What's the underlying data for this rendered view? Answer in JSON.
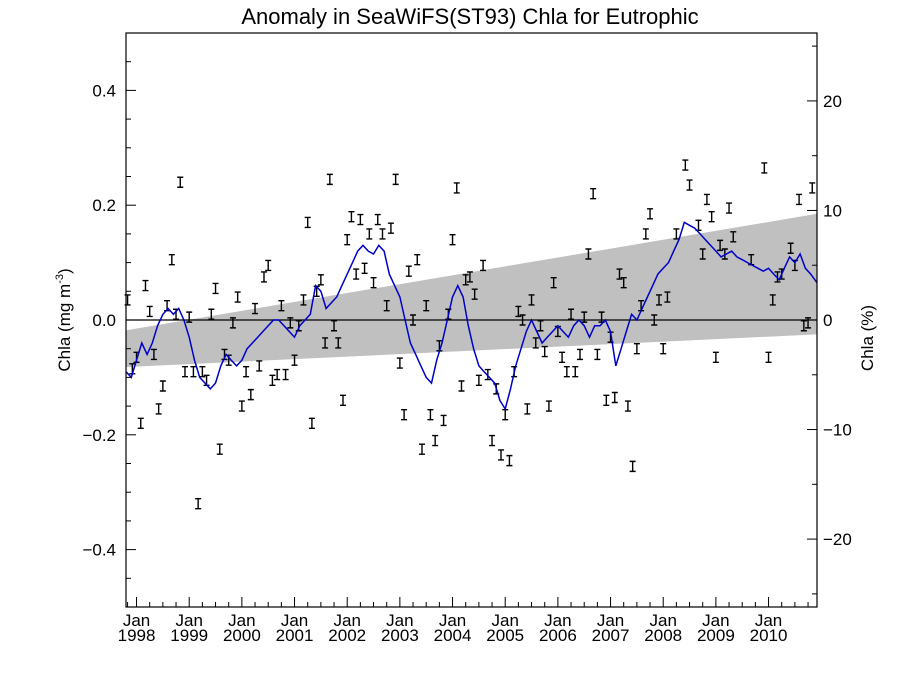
{
  "chart_data": {
    "type": "scatter",
    "title": "Anomaly in SeaWiFS(ST93) Chla for Eutrophic",
    "ylabel": "Chla (mg m",
    "ylabel_sup": "-3",
    "ylabel_tail": ")",
    "ylabel_right": "Chla (%)",
    "xlim": [
      1997.8,
      2010.92
    ],
    "ylim": [
      -0.5,
      0.5
    ],
    "ylim_right": [
      -26.2,
      26.2
    ],
    "xticks": [
      {
        "value": 1998,
        "month": "Jan",
        "year": "1998"
      },
      {
        "value": 1999,
        "month": "Jan",
        "year": "1999"
      },
      {
        "value": 2000,
        "month": "Jan",
        "year": "2000"
      },
      {
        "value": 2001,
        "month": "Jan",
        "year": "2001"
      },
      {
        "value": 2002,
        "month": "Jan",
        "year": "2002"
      },
      {
        "value": 2003,
        "month": "Jan",
        "year": "2003"
      },
      {
        "value": 2004,
        "month": "Jan",
        "year": "2004"
      },
      {
        "value": 2005,
        "month": "Jan",
        "year": "2005"
      },
      {
        "value": 2006,
        "month": "Jan",
        "year": "2006"
      },
      {
        "value": 2007,
        "month": "Jan",
        "year": "2007"
      },
      {
        "value": 2008,
        "month": "Jan",
        "year": "2008"
      },
      {
        "value": 2009,
        "month": "Jan",
        "year": "2009"
      },
      {
        "value": 2010,
        "month": "Jan",
        "year": "2010"
      }
    ],
    "yticks_left": [
      {
        "value": 0.4,
        "label": "0.4"
      },
      {
        "value": 0.2,
        "label": "0.2"
      },
      {
        "value": 0.0,
        "label": "0.0"
      },
      {
        "value": -0.2,
        "label": "−0.2"
      },
      {
        "value": -0.4,
        "label": "−0.4"
      }
    ],
    "yticks_right": [
      {
        "value": 20,
        "label": "20"
      },
      {
        "value": 10,
        "label": "10"
      },
      {
        "value": 0,
        "label": "0"
      },
      {
        "value": -10,
        "label": "−10"
      },
      {
        "value": -20,
        "label": "−20"
      }
    ],
    "trend_band": {
      "x_start": 1997.8,
      "x_end": 2010.92,
      "upper": [
        -0.018,
        0.185
      ],
      "lower": [
        -0.082,
        -0.025
      ]
    },
    "zero_line": 0.0,
    "colors": {
      "line": "#0000cc",
      "band": "#c0c0c0",
      "points": "#000000"
    },
    "monthly_anomaly": [
      {
        "x": 1997.83,
        "y": 0.035
      },
      {
        "x": 1997.92,
        "y": -0.085
      },
      {
        "x": 1998.0,
        "y": -0.065
      },
      {
        "x": 1998.08,
        "y": -0.18
      },
      {
        "x": 1998.17,
        "y": 0.06
      },
      {
        "x": 1998.25,
        "y": 0.015
      },
      {
        "x": 1998.33,
        "y": -0.06
      },
      {
        "x": 1998.42,
        "y": -0.155
      },
      {
        "x": 1998.5,
        "y": -0.115
      },
      {
        "x": 1998.58,
        "y": 0.025
      },
      {
        "x": 1998.67,
        "y": 0.105
      },
      {
        "x": 1998.75,
        "y": 0.01
      },
      {
        "x": 1998.83,
        "y": 0.24
      },
      {
        "x": 1998.92,
        "y": -0.09
      },
      {
        "x": 1999.0,
        "y": 0.005
      },
      {
        "x": 1999.08,
        "y": -0.09
      },
      {
        "x": 1999.17,
        "y": -0.32
      },
      {
        "x": 1999.25,
        "y": -0.09
      },
      {
        "x": 1999.33,
        "y": -0.105
      },
      {
        "x": 1999.42,
        "y": 0.01
      },
      {
        "x": 1999.5,
        "y": 0.055
      },
      {
        "x": 1999.58,
        "y": -0.225
      },
      {
        "x": 1999.67,
        "y": -0.06
      },
      {
        "x": 1999.75,
        "y": -0.07
      },
      {
        "x": 1999.83,
        "y": -0.005
      },
      {
        "x": 1999.92,
        "y": 0.04
      },
      {
        "x": 2000.0,
        "y": -0.15
      },
      {
        "x": 2000.08,
        "y": -0.09
      },
      {
        "x": 2000.17,
        "y": -0.13
      },
      {
        "x": 2000.25,
        "y": 0.02
      },
      {
        "x": 2000.33,
        "y": -0.08
      },
      {
        "x": 2000.42,
        "y": 0.075
      },
      {
        "x": 2000.5,
        "y": 0.095
      },
      {
        "x": 2000.58,
        "y": -0.105
      },
      {
        "x": 2000.67,
        "y": -0.095
      },
      {
        "x": 2000.75,
        "y": 0.025
      },
      {
        "x": 2000.83,
        "y": -0.095
      },
      {
        "x": 2000.92,
        "y": -0.005
      },
      {
        "x": 2001.0,
        "y": -0.07
      },
      {
        "x": 2001.08,
        "y": -0.01
      },
      {
        "x": 2001.17,
        "y": 0.035
      },
      {
        "x": 2001.25,
        "y": 0.17
      },
      {
        "x": 2001.33,
        "y": -0.18
      },
      {
        "x": 2001.42,
        "y": 0.05
      },
      {
        "x": 2001.5,
        "y": 0.07
      },
      {
        "x": 2001.58,
        "y": -0.04
      },
      {
        "x": 2001.67,
        "y": 0.245
      },
      {
        "x": 2001.75,
        "y": -0.01
      },
      {
        "x": 2001.83,
        "y": -0.04
      },
      {
        "x": 2001.92,
        "y": -0.14
      },
      {
        "x": 2002.0,
        "y": 0.14
      },
      {
        "x": 2002.08,
        "y": 0.18
      },
      {
        "x": 2002.17,
        "y": 0.08
      },
      {
        "x": 2002.25,
        "y": 0.175
      },
      {
        "x": 2002.33,
        "y": 0.09
      },
      {
        "x": 2002.42,
        "y": 0.15
      },
      {
        "x": 2002.5,
        "y": 0.065
      },
      {
        "x": 2002.58,
        "y": 0.175
      },
      {
        "x": 2002.67,
        "y": 0.15
      },
      {
        "x": 2002.75,
        "y": 0.025
      },
      {
        "x": 2002.83,
        "y": 0.16
      },
      {
        "x": 2002.92,
        "y": 0.245
      },
      {
        "x": 2003.0,
        "y": -0.075
      },
      {
        "x": 2003.08,
        "y": -0.165
      },
      {
        "x": 2003.17,
        "y": 0.085
      },
      {
        "x": 2003.25,
        "y": 0.0
      },
      {
        "x": 2003.33,
        "y": 0.105
      },
      {
        "x": 2003.42,
        "y": -0.225
      },
      {
        "x": 2003.5,
        "y": 0.025
      },
      {
        "x": 2003.58,
        "y": -0.165
      },
      {
        "x": 2003.67,
        "y": -0.21
      },
      {
        "x": 2003.75,
        "y": -0.045
      },
      {
        "x": 2003.83,
        "y": -0.175
      },
      {
        "x": 2003.92,
        "y": 0.01
      },
      {
        "x": 2004.0,
        "y": 0.14
      },
      {
        "x": 2004.08,
        "y": 0.23
      },
      {
        "x": 2004.17,
        "y": -0.115
      },
      {
        "x": 2004.25,
        "y": 0.07
      },
      {
        "x": 2004.33,
        "y": 0.075
      },
      {
        "x": 2004.42,
        "y": 0.045
      },
      {
        "x": 2004.5,
        "y": -0.105
      },
      {
        "x": 2004.58,
        "y": 0.095
      },
      {
        "x": 2004.67,
        "y": -0.095
      },
      {
        "x": 2004.75,
        "y": -0.21
      },
      {
        "x": 2004.83,
        "y": -0.12
      },
      {
        "x": 2004.92,
        "y": -0.235
      },
      {
        "x": 2005.0,
        "y": -0.165
      },
      {
        "x": 2005.08,
        "y": -0.245
      },
      {
        "x": 2005.17,
        "y": -0.09
      },
      {
        "x": 2005.25,
        "y": 0.015
      },
      {
        "x": 2005.33,
        "y": 0.0
      },
      {
        "x": 2005.42,
        "y": -0.155
      },
      {
        "x": 2005.5,
        "y": 0.035
      },
      {
        "x": 2005.58,
        "y": -0.04
      },
      {
        "x": 2005.67,
        "y": -0.01
      },
      {
        "x": 2005.75,
        "y": -0.055
      },
      {
        "x": 2005.83,
        "y": -0.15
      },
      {
        "x": 2005.92,
        "y": 0.065
      },
      {
        "x": 2006.0,
        "y": -0.02
      },
      {
        "x": 2006.08,
        "y": -0.065
      },
      {
        "x": 2006.17,
        "y": -0.09
      },
      {
        "x": 2006.25,
        "y": 0.01
      },
      {
        "x": 2006.33,
        "y": -0.09
      },
      {
        "x": 2006.42,
        "y": -0.06
      },
      {
        "x": 2006.5,
        "y": 0.005
      },
      {
        "x": 2006.58,
        "y": 0.115
      },
      {
        "x": 2006.67,
        "y": 0.22
      },
      {
        "x": 2006.75,
        "y": -0.06
      },
      {
        "x": 2006.83,
        "y": 0.005
      },
      {
        "x": 2006.92,
        "y": -0.14
      },
      {
        "x": 2007.0,
        "y": -0.03
      },
      {
        "x": 2007.08,
        "y": -0.135
      },
      {
        "x": 2007.17,
        "y": 0.08
      },
      {
        "x": 2007.25,
        "y": 0.065
      },
      {
        "x": 2007.33,
        "y": -0.15
      },
      {
        "x": 2007.42,
        "y": -0.255
      },
      {
        "x": 2007.5,
        "y": -0.05
      },
      {
        "x": 2007.58,
        "y": 0.025
      },
      {
        "x": 2007.67,
        "y": 0.15
      },
      {
        "x": 2007.75,
        "y": 0.185
      },
      {
        "x": 2007.83,
        "y": 0.0
      },
      {
        "x": 2007.92,
        "y": 0.035
      },
      {
        "x": 2008.0,
        "y": -0.05
      },
      {
        "x": 2008.08,
        "y": 0.04
      },
      {
        "x": 2008.25,
        "y": 0.15
      },
      {
        "x": 2008.42,
        "y": 0.27
      },
      {
        "x": 2008.5,
        "y": 0.235
      },
      {
        "x": 2008.67,
        "y": 0.165
      },
      {
        "x": 2008.75,
        "y": 0.115
      },
      {
        "x": 2008.83,
        "y": 0.21
      },
      {
        "x": 2008.92,
        "y": 0.18
      },
      {
        "x": 2009.0,
        "y": -0.065
      },
      {
        "x": 2009.08,
        "y": 0.13
      },
      {
        "x": 2009.17,
        "y": 0.115
      },
      {
        "x": 2009.25,
        "y": 0.195
      },
      {
        "x": 2009.33,
        "y": 0.145
      },
      {
        "x": 2009.67,
        "y": 0.105
      },
      {
        "x": 2009.92,
        "y": 0.265
      },
      {
        "x": 2010.0,
        "y": -0.065
      },
      {
        "x": 2010.08,
        "y": 0.035
      },
      {
        "x": 2010.17,
        "y": 0.075
      },
      {
        "x": 2010.25,
        "y": 0.08
      },
      {
        "x": 2010.42,
        "y": 0.125
      },
      {
        "x": 2010.5,
        "y": 0.095
      },
      {
        "x": 2010.58,
        "y": 0.21
      },
      {
        "x": 2010.67,
        "y": -0.01
      },
      {
        "x": 2010.75,
        "y": -0.005
      },
      {
        "x": 2010.83,
        "y": 0.23
      }
    ],
    "running_mean": [
      [
        1997.8,
        -0.09
      ],
      [
        1997.9,
        -0.1
      ],
      [
        1998.0,
        -0.07
      ],
      [
        1998.1,
        -0.04
      ],
      [
        1998.2,
        -0.06
      ],
      [
        1998.3,
        -0.04
      ],
      [
        1998.4,
        -0.01
      ],
      [
        1998.5,
        0.01
      ],
      [
        1998.6,
        0.02
      ],
      [
        1998.7,
        0.01
      ],
      [
        1998.8,
        0.02
      ],
      [
        1998.9,
        0.0
      ],
      [
        1999.0,
        -0.03
      ],
      [
        1999.1,
        -0.07
      ],
      [
        1999.2,
        -0.1
      ],
      [
        1999.3,
        -0.11
      ],
      [
        1999.4,
        -0.12
      ],
      [
        1999.5,
        -0.11
      ],
      [
        1999.6,
        -0.08
      ],
      [
        1999.7,
        -0.06
      ],
      [
        1999.8,
        -0.07
      ],
      [
        1999.9,
        -0.08
      ],
      [
        2000.0,
        -0.07
      ],
      [
        2000.1,
        -0.05
      ],
      [
        2000.2,
        -0.04
      ],
      [
        2000.3,
        -0.03
      ],
      [
        2000.4,
        -0.02
      ],
      [
        2000.5,
        -0.01
      ],
      [
        2000.6,
        0.0
      ],
      [
        2000.7,
        0.0
      ],
      [
        2000.8,
        -0.01
      ],
      [
        2000.9,
        -0.02
      ],
      [
        2001.0,
        -0.03
      ],
      [
        2001.1,
        -0.01
      ],
      [
        2001.2,
        0.0
      ],
      [
        2001.3,
        0.01
      ],
      [
        2001.4,
        0.06
      ],
      [
        2001.5,
        0.05
      ],
      [
        2001.6,
        0.02
      ],
      [
        2001.7,
        0.03
      ],
      [
        2001.8,
        0.04
      ],
      [
        2001.9,
        0.06
      ],
      [
        2002.0,
        0.08
      ],
      [
        2002.1,
        0.1
      ],
      [
        2002.2,
        0.12
      ],
      [
        2002.3,
        0.13
      ],
      [
        2002.4,
        0.12
      ],
      [
        2002.5,
        0.115
      ],
      [
        2002.6,
        0.13
      ],
      [
        2002.7,
        0.12
      ],
      [
        2002.8,
        0.08
      ],
      [
        2002.9,
        0.06
      ],
      [
        2003.0,
        0.04
      ],
      [
        2003.1,
        0.0
      ],
      [
        2003.2,
        -0.04
      ],
      [
        2003.3,
        -0.06
      ],
      [
        2003.4,
        -0.08
      ],
      [
        2003.5,
        -0.1
      ],
      [
        2003.6,
        -0.11
      ],
      [
        2003.7,
        -0.07
      ],
      [
        2003.8,
        -0.04
      ],
      [
        2003.9,
        0.0
      ],
      [
        2004.0,
        0.04
      ],
      [
        2004.1,
        0.06
      ],
      [
        2004.2,
        0.04
      ],
      [
        2004.3,
        -0.01
      ],
      [
        2004.4,
        -0.05
      ],
      [
        2004.5,
        -0.08
      ],
      [
        2004.6,
        -0.09
      ],
      [
        2004.7,
        -0.1
      ],
      [
        2004.8,
        -0.11
      ],
      [
        2004.9,
        -0.14
      ],
      [
        2005.0,
        -0.155
      ],
      [
        2005.1,
        -0.12
      ],
      [
        2005.2,
        -0.08
      ],
      [
        2005.3,
        -0.05
      ],
      [
        2005.4,
        -0.02
      ],
      [
        2005.5,
        0.0
      ],
      [
        2005.6,
        -0.02
      ],
      [
        2005.7,
        -0.04
      ],
      [
        2005.8,
        -0.03
      ],
      [
        2005.9,
        -0.02
      ],
      [
        2006.0,
        -0.01
      ],
      [
        2006.1,
        -0.02
      ],
      [
        2006.2,
        -0.03
      ],
      [
        2006.3,
        -0.01
      ],
      [
        2006.4,
        0.0
      ],
      [
        2006.5,
        -0.01
      ],
      [
        2006.6,
        -0.03
      ],
      [
        2006.7,
        -0.01
      ],
      [
        2006.8,
        -0.01
      ],
      [
        2006.9,
        0.0
      ],
      [
        2007.0,
        -0.02
      ],
      [
        2007.1,
        -0.08
      ],
      [
        2007.2,
        -0.05
      ],
      [
        2007.3,
        -0.02
      ],
      [
        2007.4,
        0.01
      ],
      [
        2007.5,
        0.0
      ],
      [
        2007.6,
        0.02
      ],
      [
        2007.7,
        0.04
      ],
      [
        2007.8,
        0.06
      ],
      [
        2007.9,
        0.08
      ],
      [
        2008.0,
        0.09
      ],
      [
        2008.1,
        0.1
      ],
      [
        2008.2,
        0.12
      ],
      [
        2008.3,
        0.14
      ],
      [
        2008.4,
        0.17
      ],
      [
        2008.5,
        0.165
      ],
      [
        2008.6,
        0.16
      ],
      [
        2008.7,
        0.15
      ],
      [
        2008.8,
        0.14
      ],
      [
        2008.9,
        0.13
      ],
      [
        2009.0,
        0.12
      ],
      [
        2009.1,
        0.11
      ],
      [
        2009.2,
        0.115
      ],
      [
        2009.3,
        0.12
      ],
      [
        2009.4,
        0.11
      ],
      [
        2009.5,
        0.105
      ],
      [
        2009.6,
        0.1
      ],
      [
        2009.7,
        0.095
      ],
      [
        2009.8,
        0.09
      ],
      [
        2009.9,
        0.085
      ],
      [
        2010.0,
        0.09
      ],
      [
        2010.1,
        0.08
      ],
      [
        2010.2,
        0.07
      ],
      [
        2010.3,
        0.09
      ],
      [
        2010.4,
        0.11
      ],
      [
        2010.5,
        0.1
      ],
      [
        2010.6,
        0.115
      ],
      [
        2010.7,
        0.09
      ],
      [
        2010.8,
        0.08
      ],
      [
        2010.92,
        0.065
      ]
    ]
  }
}
